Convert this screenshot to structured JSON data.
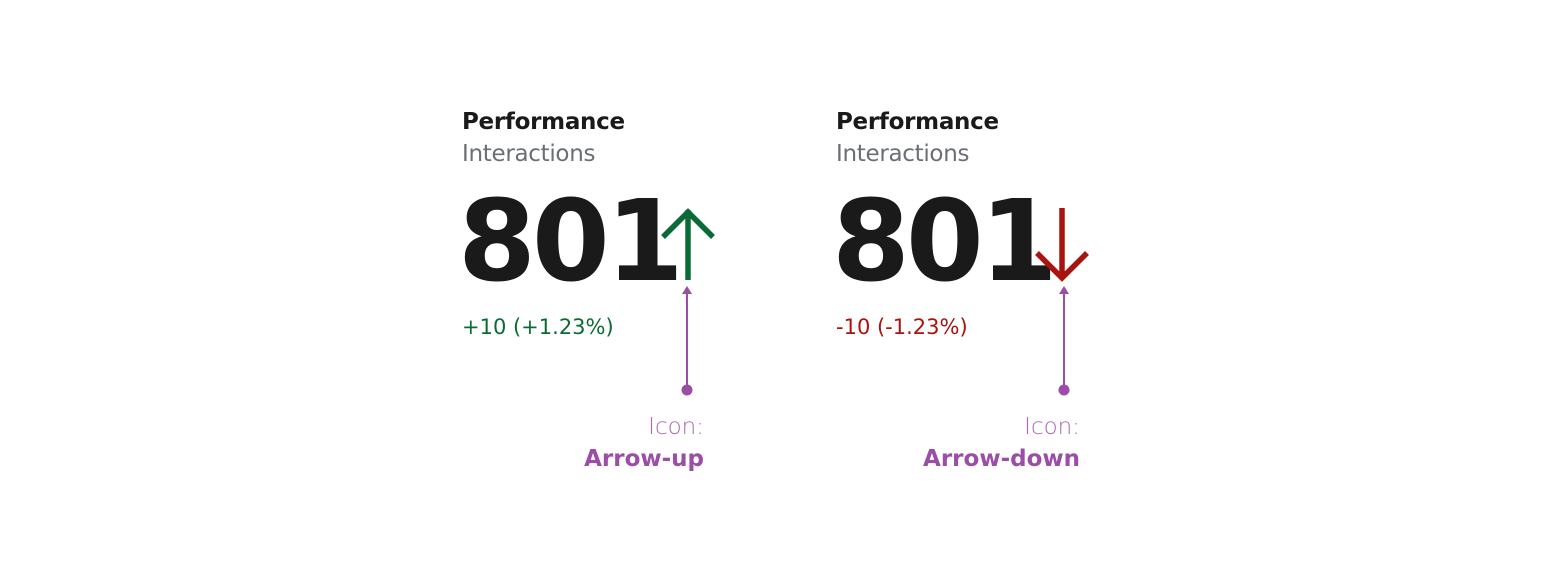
{
  "cards": [
    {
      "title": "Performance",
      "subtitle": "Interactions",
      "value": "801",
      "delta": "+10 (+1.23%)",
      "trend": "up",
      "icon": "arrow-up-icon",
      "color": "#0b6b35",
      "annotation": {
        "label": "Icon:",
        "name": "Arrow-up"
      }
    },
    {
      "title": "Performance",
      "subtitle": "Interactions",
      "value": "801",
      "delta": "-10 (-1.23%)",
      "trend": "down",
      "icon": "arrow-down-icon",
      "color": "#a8150e",
      "annotation": {
        "label": "Icon:",
        "name": "Arrow-down"
      }
    }
  ],
  "annotation_color": "#9a4ea6"
}
